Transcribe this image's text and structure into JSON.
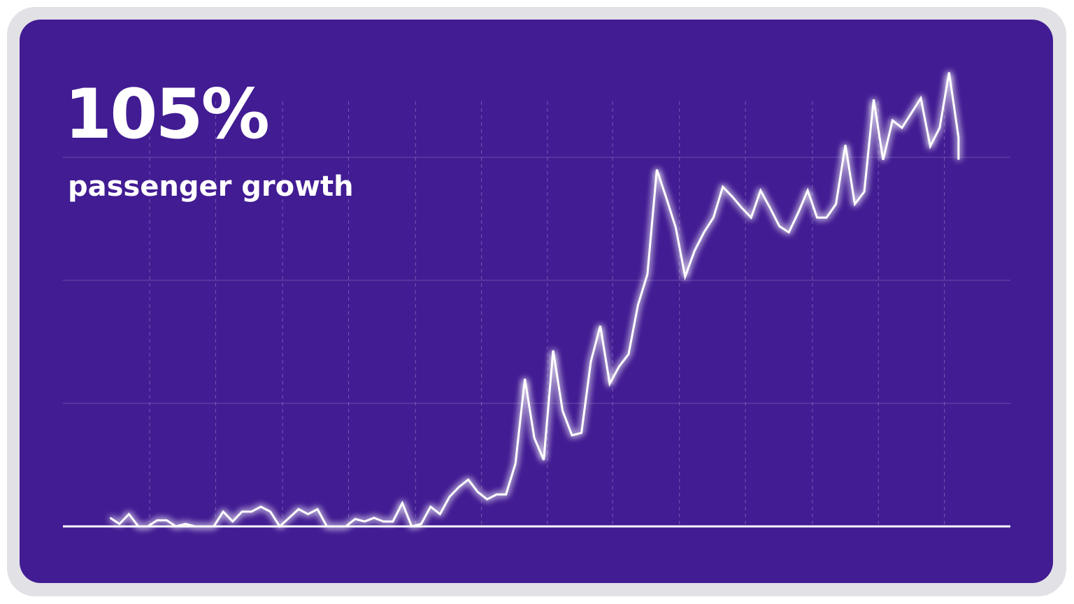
{
  "chart_data": {
    "type": "line",
    "title": "105%",
    "subtitle": "passenger growth",
    "x": [
      0,
      1,
      2,
      3,
      4,
      5,
      6,
      7,
      8,
      9,
      10,
      11,
      12,
      13,
      14,
      15,
      16,
      17,
      18,
      19,
      20,
      21,
      22,
      23,
      24,
      25,
      26,
      27,
      28,
      29,
      30,
      31,
      32,
      33,
      34,
      35,
      36,
      37,
      38,
      39,
      40,
      41,
      42,
      43,
      44,
      45,
      46,
      47,
      48,
      49,
      50,
      51,
      52,
      53,
      54,
      55,
      56,
      57,
      58,
      59,
      60,
      61,
      62,
      63,
      64,
      65,
      66,
      67,
      68,
      69,
      70,
      71,
      72,
      73,
      74,
      75,
      76,
      77,
      78,
      79,
      80,
      81,
      82,
      83,
      84,
      85,
      86,
      87,
      88,
      89,
      90,
      90
    ],
    "series": [
      {
        "color": "#ffffff",
        "values": [
          0.07,
          0.02,
          0.1,
          0,
          0,
          0.05,
          0.05,
          0,
          0.02,
          0,
          0,
          0,
          0.12,
          0.04,
          0.12,
          0.12,
          0.16,
          0.12,
          0,
          0.07,
          0.14,
          0.1,
          0.14,
          0,
          0,
          0,
          0.06,
          0.04,
          0.07,
          0.04,
          0.04,
          0.19,
          0,
          0.02,
          0.16,
          0.1,
          0.24,
          0.32,
          0.38,
          0.28,
          0.22,
          0.26,
          0.26,
          0.51,
          1.2,
          0.72,
          0.54,
          1.43,
          0.94,
          0.74,
          0.76,
          1.34,
          1.63,
          1.16,
          1.3,
          1.4,
          1.8,
          2.05,
          2.9,
          2.67,
          2.43,
          2.03,
          2.24,
          2.39,
          2.51,
          2.76,
          2.68,
          2.59,
          2.51,
          2.73,
          2.59,
          2.44,
          2.39,
          2.55,
          2.73,
          2.51,
          2.51,
          2.62,
          3.1,
          2.62,
          2.72,
          3.47,
          2.98,
          3.3,
          3.24,
          3.36,
          3.48,
          3.09,
          3.24,
          3.69,
          3.16,
          2.98
        ]
      }
    ],
    "xlim": [
      -5,
      95.5
    ],
    "xticks": [
      4.2,
      11.2,
      18.3,
      25.3,
      32.4,
      39.4,
      46.4,
      53.3,
      60.4,
      67.4,
      74.5,
      81.5,
      88.5
    ],
    "ylim": [
      0,
      4
    ],
    "yticks": [
      0,
      1,
      2,
      3
    ],
    "grid": true
  }
}
